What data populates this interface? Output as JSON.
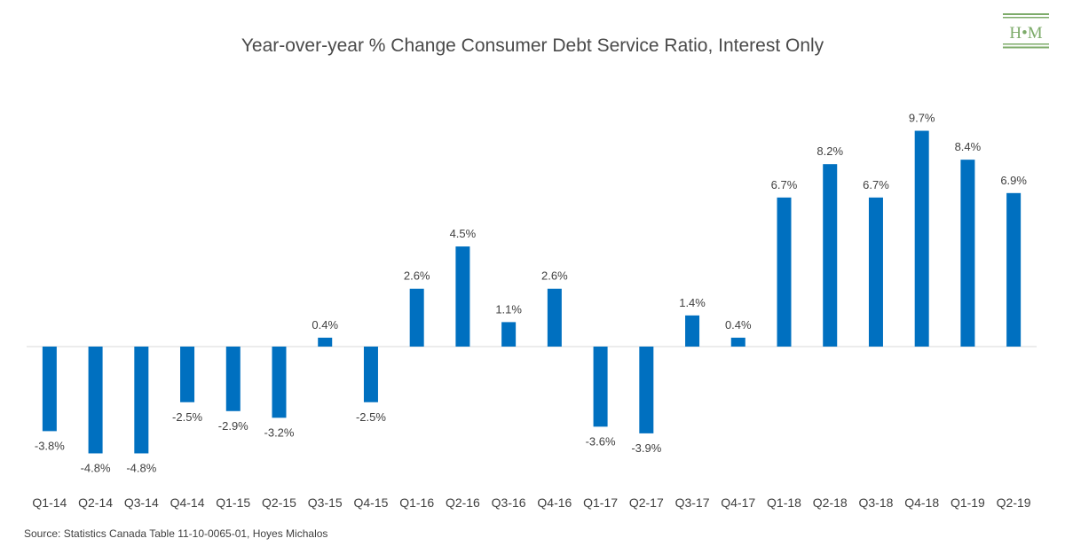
{
  "logo": {
    "text": "H•M",
    "color": "#7dab6a"
  },
  "source": "Source: Statistics Canada Table 11-10-0065-01, Hoyes Michalos",
  "chart_data": {
    "type": "bar",
    "title": "Year-over-year % Change Consumer Debt Service Ratio, Interest Only",
    "xlabel": "",
    "ylabel": "",
    "grid": false,
    "bar_color": "#0070c0",
    "ylim": [
      -6.5,
      13.2
    ],
    "categories": [
      "Q1-14",
      "Q2-14",
      "Q3-14",
      "Q4-14",
      "Q1-15",
      "Q2-15",
      "Q3-15",
      "Q4-15",
      "Q1-16",
      "Q2-16",
      "Q3-16",
      "Q4-16",
      "Q1-17",
      "Q2-17",
      "Q3-17",
      "Q4-17",
      "Q1-18",
      "Q2-18",
      "Q3-18",
      "Q4-18",
      "Q1-19",
      "Q2-19"
    ],
    "values": [
      -3.8,
      -4.8,
      -4.8,
      -2.5,
      -2.9,
      -3.2,
      0.4,
      -2.5,
      2.6,
      4.5,
      1.1,
      2.6,
      -3.6,
      -3.9,
      1.4,
      0.4,
      6.7,
      8.2,
      6.7,
      9.7,
      8.4,
      6.9
    ],
    "data_labels": [
      "-3.8%",
      "-4.8%",
      "-4.8%",
      "-2.5%",
      "-2.9%",
      "-3.2%",
      "0.4%",
      "-2.5%",
      "2.6%",
      "4.5%",
      "1.1%",
      "2.6%",
      "-3.6%",
      "-3.9%",
      "1.4%",
      "0.4%",
      "6.7%",
      "8.2%",
      "6.7%",
      "9.7%",
      "8.4%",
      "6.9%"
    ]
  }
}
